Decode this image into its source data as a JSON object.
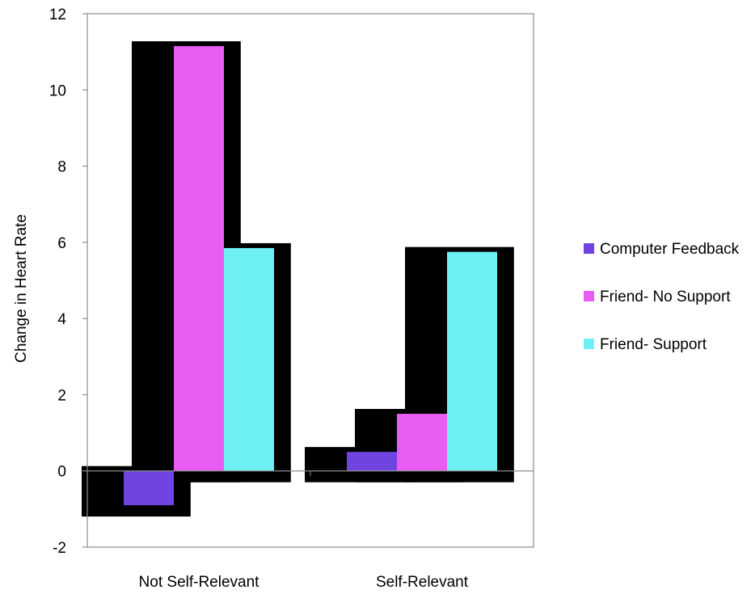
{
  "chart_data": {
    "type": "bar",
    "title": "",
    "xlabel": "",
    "ylabel": "Change in Heart Rate",
    "ylim": [
      -2,
      12
    ],
    "yticks": [
      -2,
      0,
      2,
      4,
      6,
      8,
      10,
      12
    ],
    "categories": [
      "Not Self-Relevant",
      "Self-Relevant"
    ],
    "series": [
      {
        "name": "Computer Feedback",
        "values": [
          -0.9,
          0.5
        ],
        "color": "#6f44e0"
      },
      {
        "name": "Friend- No Support",
        "values": [
          11.15,
          1.5
        ],
        "color": "#e85cf4"
      },
      {
        "name": "Friend- Support",
        "values": [
          5.85,
          5.75
        ],
        "color": "#6ff0f5"
      }
    ],
    "legend_position": "right",
    "grid": false
  }
}
